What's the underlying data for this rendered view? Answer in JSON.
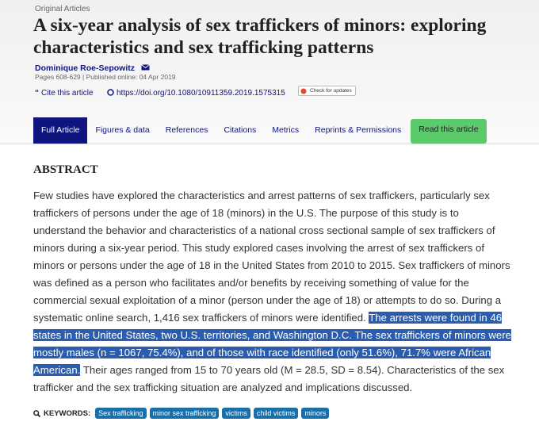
{
  "header": {
    "section": "Original Articles",
    "title": "A six-year analysis of sex traffickers of minors: exploring characteristics and sex trafficking patterns",
    "author": "Dominique Roe-Sepowitz",
    "meta": "Pages 608-629 | Published online: 04 Apr 2019",
    "cite": "Cite this article",
    "doi": "https://doi.org/10.1080/10911359.2019.1575315",
    "updates": "Check for updates"
  },
  "tabs": [
    "Full Article",
    "Figures & data",
    "References",
    "Citations",
    "Metrics",
    "Reprints & Permissions",
    "Read this article"
  ],
  "abstract": {
    "heading": "ABSTRACT",
    "text_before": "Few studies have explored the characteristics and arrest patterns of sex traffickers, particularly sex traffickers of persons under the age of 18 (minors) in the U.S. The purpose of this study is to understand the behavior and characteristics of a national cross sectional sample of sex traffickers of minors during a six-year period. This study explored cases involving the arrest of sex traffickers of minors or persons under the age of 18 in the United States from 2010 to 2015. Sex traffickers of minors was defined as a person who facilitates and/or benefits by receiving something of value for the commercial sexual exploitation of a minor (person under the age of 18) or attempts to do so. During a systematic online search, 1,416 sex traffickers of minors were identified.",
    "highlighted": "The arrests were found in 46 states in the United States, two U.S. territories, and Washington D.C. The sex traffickers of minors were mostly males (n = 1067, 75.4%), and of those with race identified (only 51.6%), 71.7% were African American.",
    "text_after": "Their ages ranged from 15 to 70 years old (M = 28.5, SD = 8.54). Characteristics of the sex trafficker and the sex trafficking situation are analyzed and implications discussed."
  },
  "keywords": {
    "label": "KEYWORDS:",
    "items": [
      "Sex trafficking",
      "minor sex trafficking",
      "victims",
      "child victims",
      "minors"
    ]
  }
}
